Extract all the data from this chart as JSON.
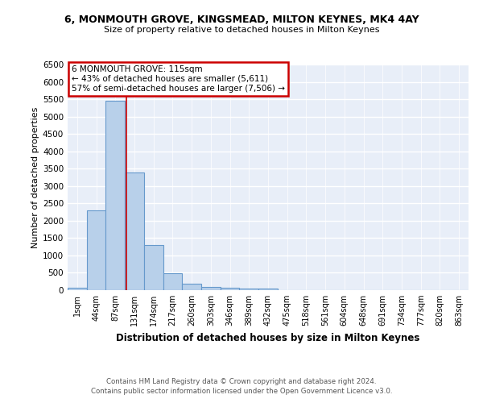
{
  "title_line1": "6, MONMOUTH GROVE, KINGSMEAD, MILTON KEYNES, MK4 4AY",
  "title_line2": "Size of property relative to detached houses in Milton Keynes",
  "xlabel": "Distribution of detached houses by size in Milton Keynes",
  "ylabel": "Number of detached properties",
  "footer_line1": "Contains HM Land Registry data © Crown copyright and database right 2024.",
  "footer_line2": "Contains public sector information licensed under the Open Government Licence v3.0.",
  "annotation_line1": "6 MONMOUTH GROVE: 115sqm",
  "annotation_line2": "← 43% of detached houses are smaller (5,611)",
  "annotation_line3": "57% of semi-detached houses are larger (7,506) →",
  "bin_labels": [
    "1sqm",
    "44sqm",
    "87sqm",
    "131sqm",
    "174sqm",
    "217sqm",
    "260sqm",
    "303sqm",
    "346sqm",
    "389sqm",
    "432sqm",
    "475sqm",
    "518sqm",
    "561sqm",
    "604sqm",
    "648sqm",
    "691sqm",
    "734sqm",
    "777sqm",
    "820sqm",
    "863sqm"
  ],
  "bar_values": [
    70,
    2300,
    5450,
    3400,
    1310,
    480,
    180,
    90,
    70,
    50,
    50,
    0,
    0,
    0,
    0,
    0,
    0,
    0,
    0,
    0,
    0
  ],
  "bar_color": "#b8d0ea",
  "bar_edge_color": "#6699cc",
  "red_line_x": 2.57,
  "ylim": [
    0,
    6500
  ],
  "yticks": [
    0,
    500,
    1000,
    1500,
    2000,
    2500,
    3000,
    3500,
    4000,
    4500,
    5000,
    5500,
    6000,
    6500
  ],
  "bg_color": "#e8eef8",
  "grid_color": "#ffffff",
  "annotation_box_color": "#ffffff",
  "annotation_box_edge_color": "#cc0000",
  "fig_bg": "#ffffff"
}
